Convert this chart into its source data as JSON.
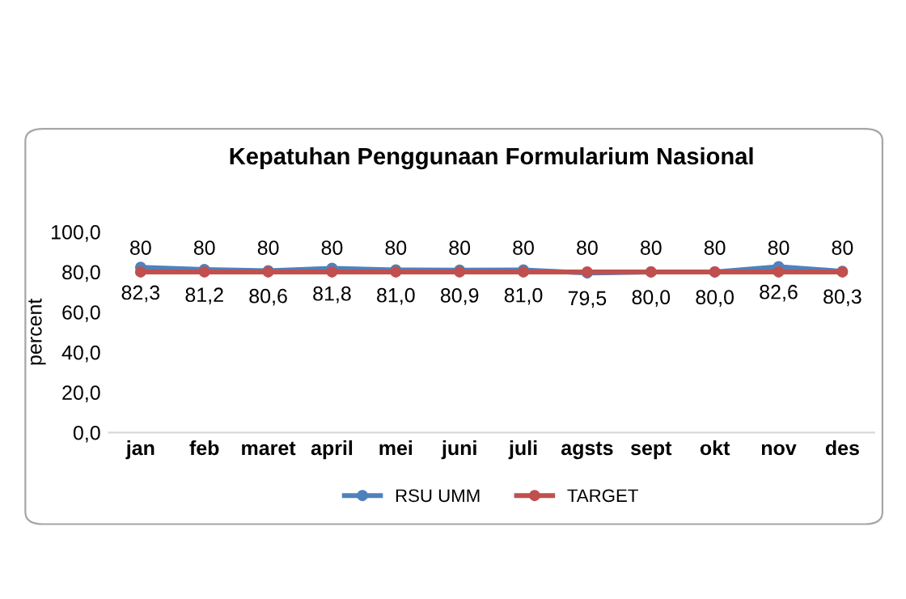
{
  "chart_data": {
    "type": "line",
    "title": "Kepatuhan Penggunaan Formularium Nasional",
    "ylabel": "percent",
    "categories": [
      "jan",
      "feb",
      "maret",
      "april",
      "mei",
      "juni",
      "juli",
      "agsts",
      "sept",
      "okt",
      "nov",
      "des"
    ],
    "series": [
      {
        "name": "RSU UMM",
        "color": "#4f81bd",
        "values": [
          82.3,
          81.2,
          80.6,
          81.8,
          81.0,
          80.9,
          81.0,
          79.5,
          80.0,
          80.0,
          82.6,
          80.3
        ],
        "value_labels": [
          "82,3",
          "81,2",
          "80,6",
          "81,8",
          "81,0",
          "80,9",
          "81,0",
          "79,5",
          "80,0",
          "80,0",
          "82,6",
          "80,3"
        ]
      },
      {
        "name": "TARGET",
        "color": "#c0504d",
        "values": [
          80,
          80,
          80,
          80,
          80,
          80,
          80,
          80,
          80,
          80,
          80,
          80
        ],
        "value_labels": [
          "80",
          "80",
          "80",
          "80",
          "80",
          "80",
          "80",
          "80",
          "80",
          "80",
          "80",
          "80"
        ]
      }
    ],
    "ylim": [
      0,
      100
    ],
    "yticks": [
      {
        "value": 0,
        "label": "0,0"
      },
      {
        "value": 20,
        "label": "20,0"
      },
      {
        "value": 40,
        "label": "40,0"
      },
      {
        "value": 60,
        "label": "60,0"
      },
      {
        "value": 80,
        "label": "80,0"
      },
      {
        "value": 100,
        "label": "100,0"
      }
    ],
    "grid": false,
    "legend": "bottom",
    "marker": "circle",
    "line_style": "solid"
  }
}
